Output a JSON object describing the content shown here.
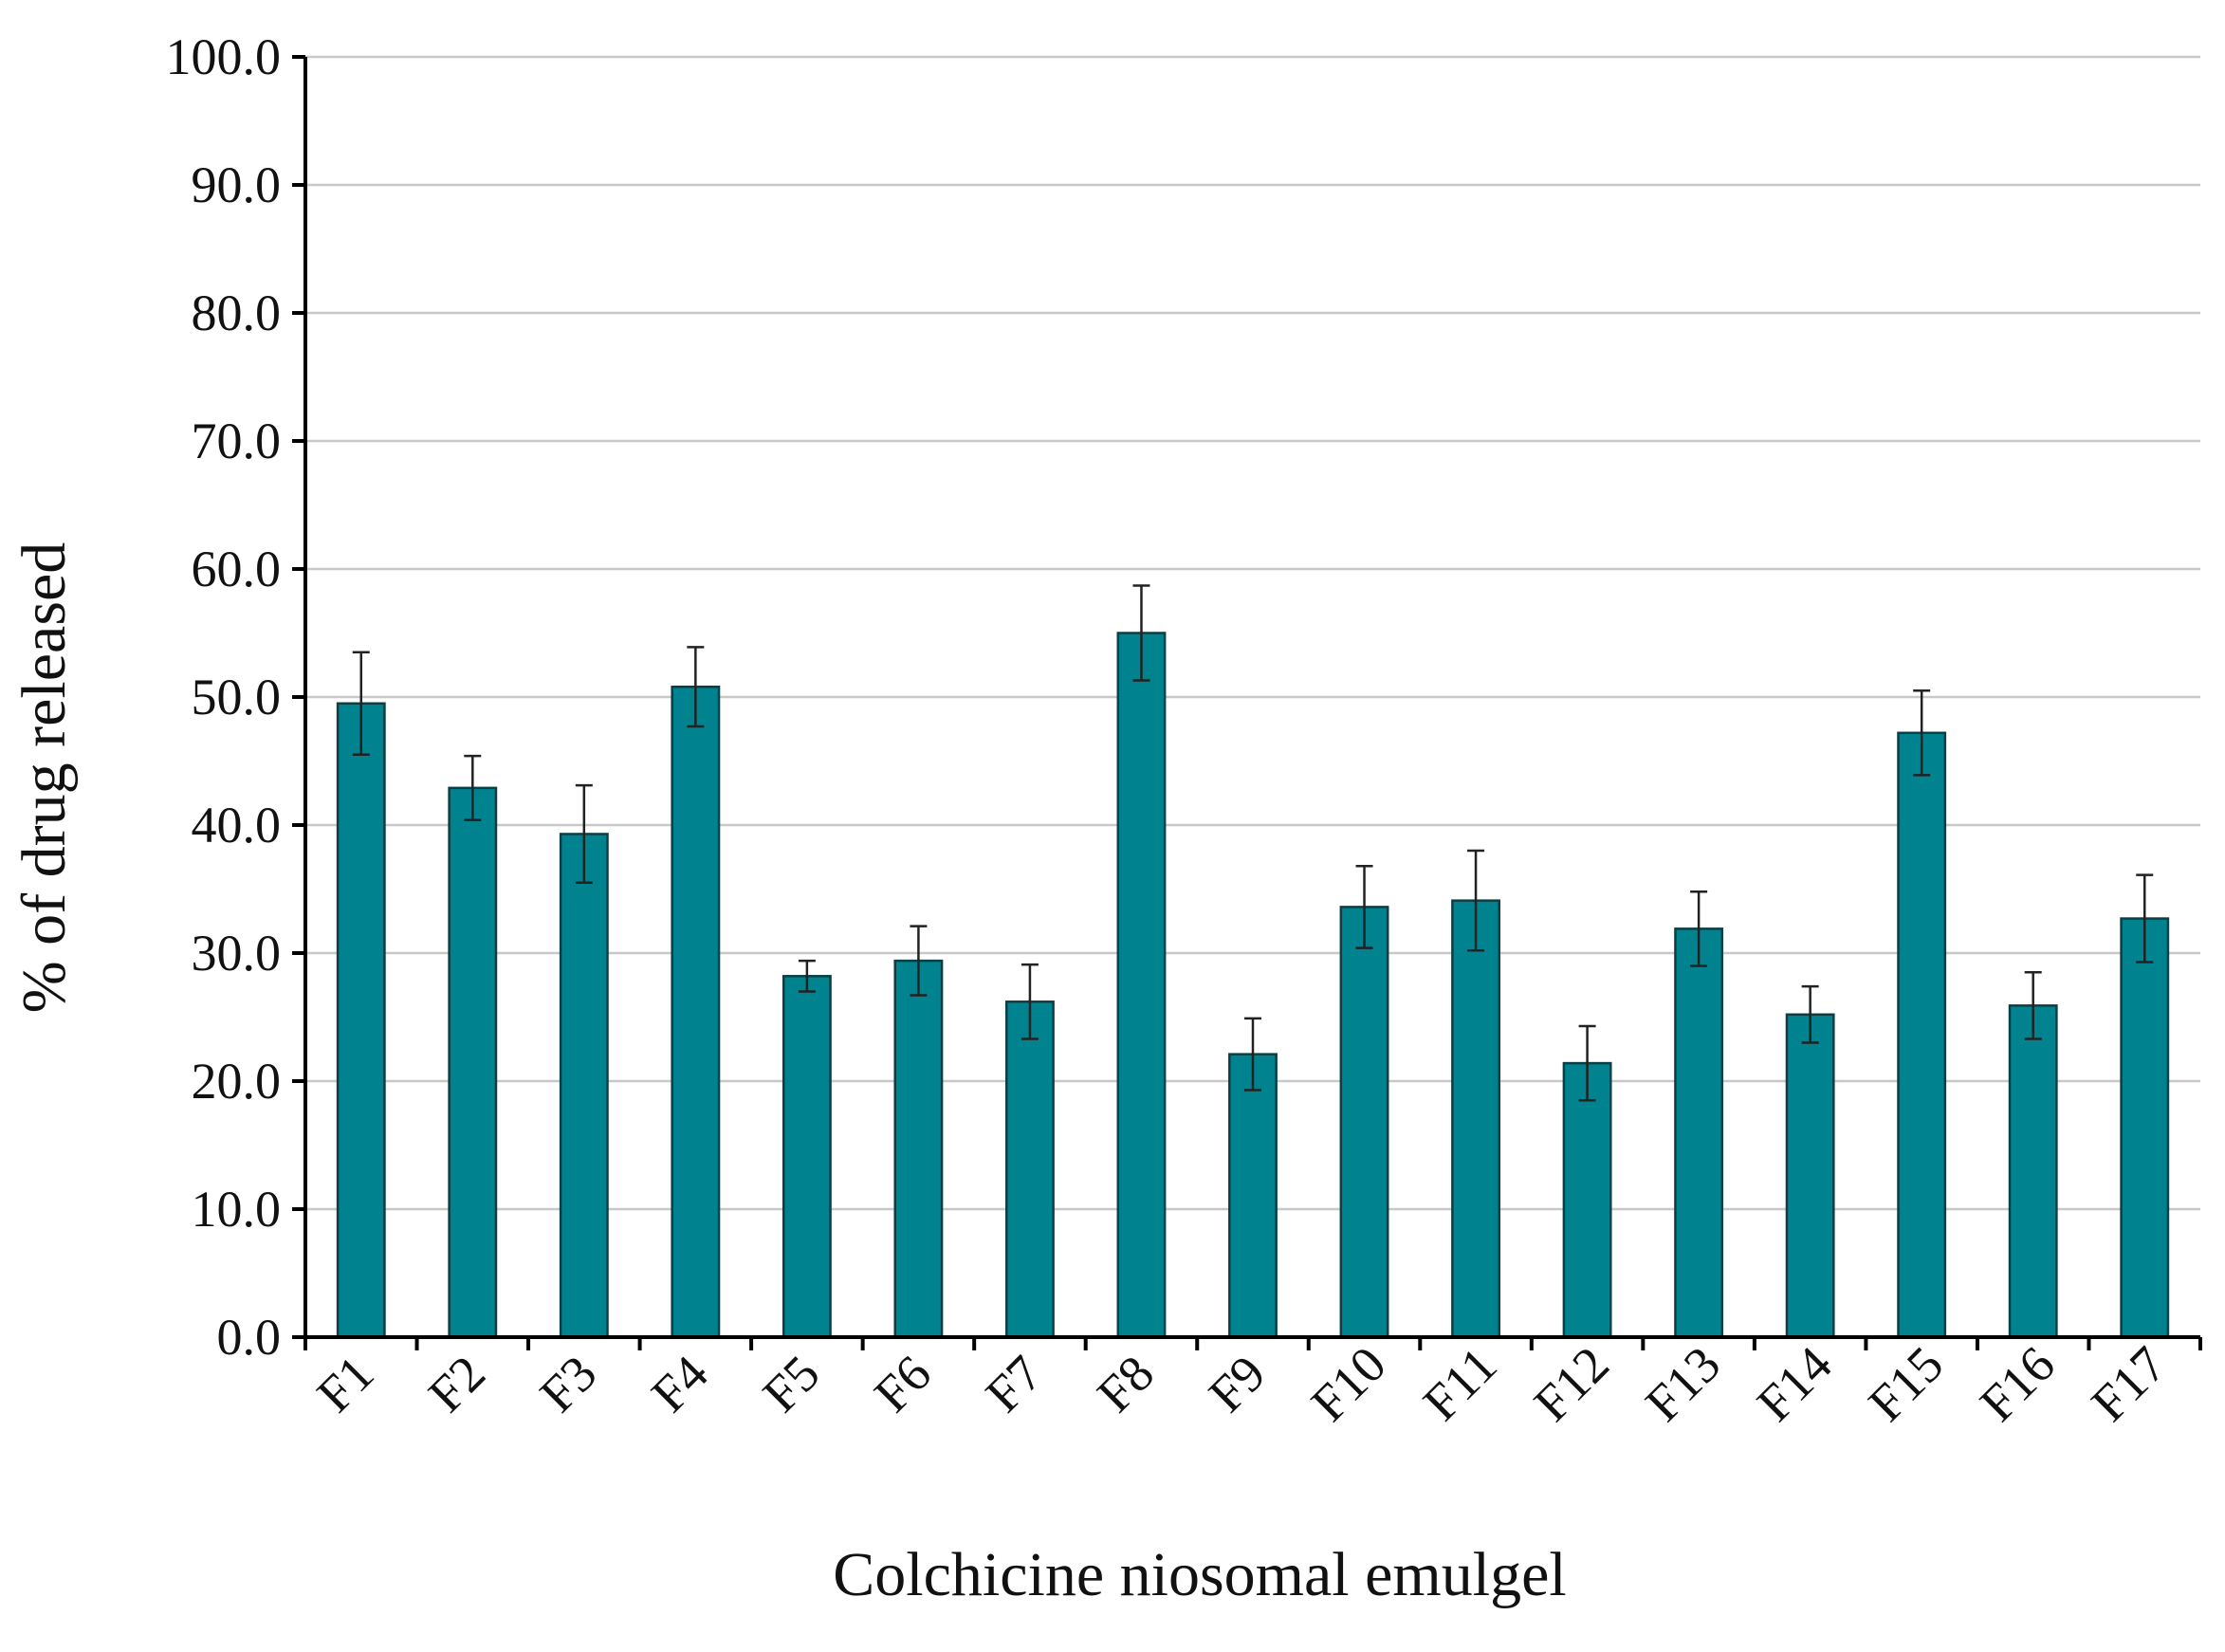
{
  "chart_data": {
    "type": "bar",
    "title": "",
    "xlabel": "Colchicine niosomal emulgel",
    "ylabel": "% of drug released",
    "ylim": [
      0,
      100
    ],
    "y_ticks": [
      "0.0",
      "10.0",
      "20.0",
      "30.0",
      "40.0",
      "50.0",
      "60.0",
      "70.0",
      "80.0",
      "90.0",
      "100.0"
    ],
    "grid": true,
    "bar_color": "#00838F",
    "categories": [
      "F1",
      "F2",
      "F3",
      "F4",
      "F5",
      "F6",
      "F7",
      "F8",
      "F9",
      "F10",
      "F11",
      "F12",
      "F13",
      "F14",
      "F15",
      "F16",
      "F17"
    ],
    "values": [
      49.5,
      42.9,
      39.3,
      50.8,
      28.2,
      29.4,
      26.2,
      55.0,
      22.1,
      33.6,
      34.1,
      21.4,
      31.9,
      25.2,
      47.2,
      25.9,
      32.7
    ],
    "errors": [
      4.0,
      2.5,
      3.8,
      3.1,
      1.2,
      2.7,
      2.9,
      3.7,
      2.8,
      3.2,
      3.9,
      2.9,
      2.9,
      2.2,
      3.3,
      2.6,
      3.4
    ]
  }
}
